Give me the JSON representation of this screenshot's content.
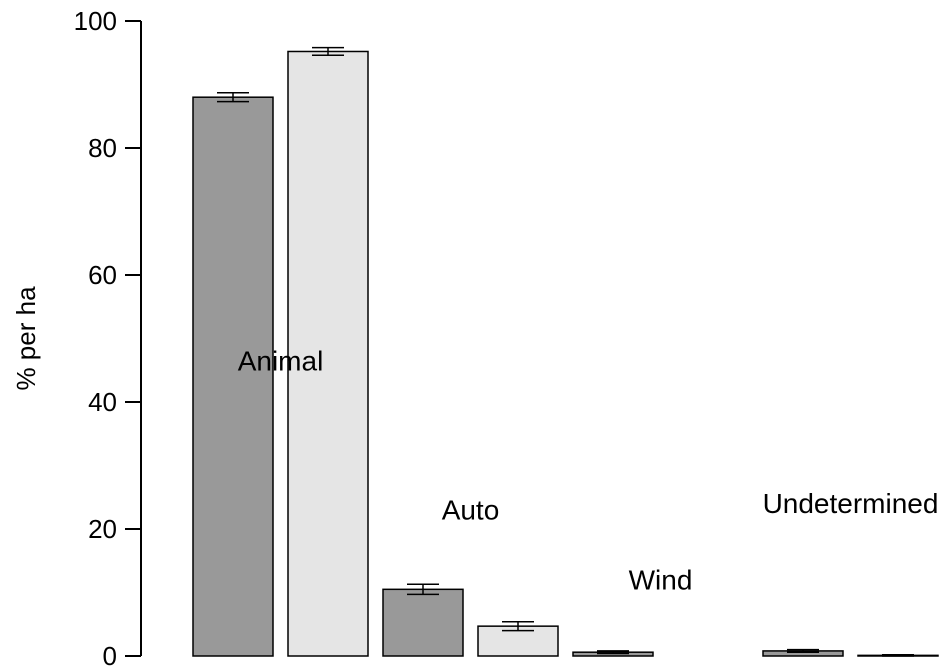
{
  "chart_data": {
    "type": "bar",
    "title": "",
    "xlabel": "",
    "ylabel": "% per ha",
    "ylim": [
      0,
      100
    ],
    "yticks": [
      0,
      20,
      40,
      60,
      80,
      100
    ],
    "grid": false,
    "legend": "none",
    "categories": [
      "Animal",
      "Auto",
      "Wind",
      "Undetermined"
    ],
    "series": [
      {
        "color": "#999999",
        "values": [
          88.0,
          10.5,
          0.6,
          0.8
        ],
        "error": [
          0.7,
          0.8,
          0.2,
          0.2
        ]
      },
      {
        "color": "#e5e5e5",
        "values": [
          95.2,
          4.7,
          0.0,
          0.1
        ],
        "error": [
          0.6,
          0.7,
          0.0,
          0.1
        ]
      }
    ],
    "category_label_y": [
      45,
      21.5,
      10.5,
      22.5
    ]
  }
}
